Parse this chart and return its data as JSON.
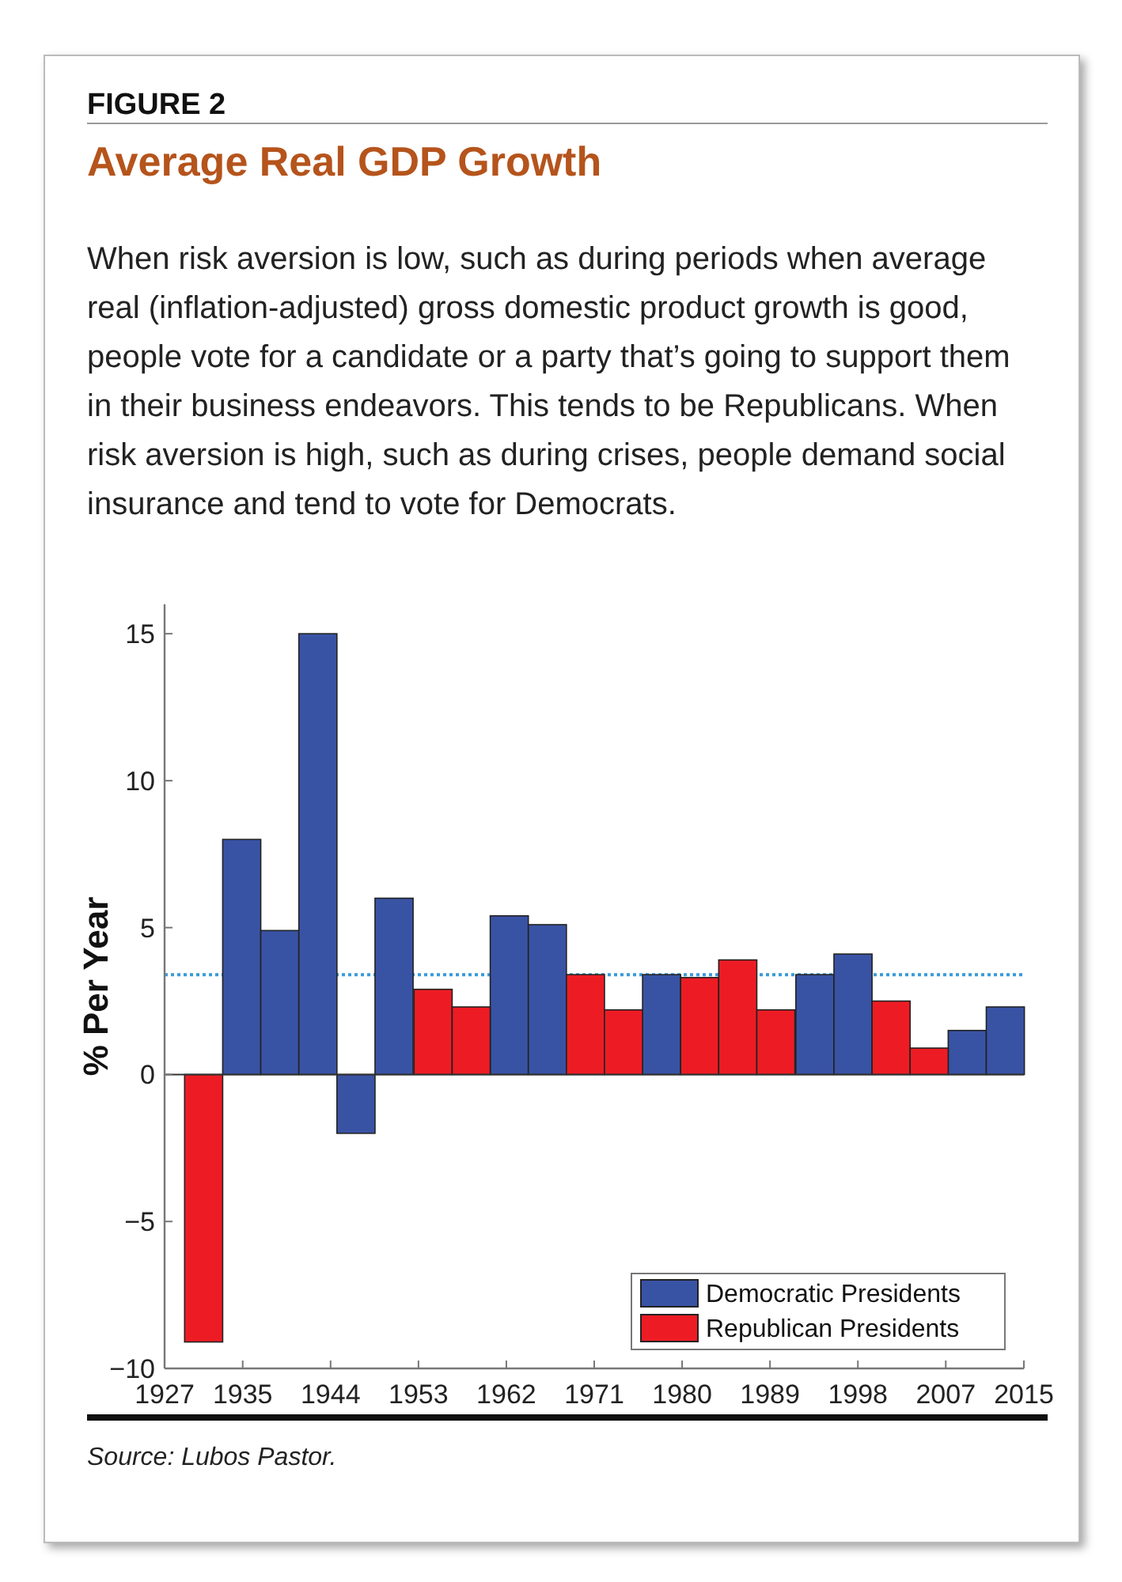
{
  "chart_data": {
    "type": "bar",
    "title": "Average Real GDP Growth",
    "subtitle": "When risk aversion is low, such as during periods when average real (inflation-adjusted) gross domestic product growth is good, people vote for a candidate or a party that’s going to support them in their business endeavors. This tends to be Republicans. When risk aversion is high, such as during crises, people demand social insurance and tend to vote for Democrats.",
    "annotations": [
      "FIGURE 2",
      "Source: Lubos Pastor."
    ],
    "ylabel": "% Per Year",
    "x": [
      1931.0,
      1934.9,
      1938.8,
      1942.7,
      1946.6,
      1950.5,
      1954.5,
      1958.4,
      1962.3,
      1966.2,
      1970.1,
      1974.0,
      1977.9,
      1981.8,
      1985.7,
      1989.6,
      1993.6,
      1997.5,
      2001.4,
      2005.3,
      2009.2,
      2013.1
    ],
    "series": [
      {
        "name": "Democratic Presidents",
        "color": "#3953a4",
        "values": [
          null,
          8.0,
          4.9,
          15.0,
          -2.0,
          6.0,
          null,
          null,
          5.4,
          5.1,
          null,
          null,
          3.4,
          null,
          null,
          null,
          3.4,
          4.1,
          null,
          null,
          1.5,
          2.3
        ]
      },
      {
        "name": "Republican Presidents",
        "color": "#ed1c24",
        "values": [
          -9.1,
          null,
          null,
          null,
          null,
          null,
          2.9,
          2.3,
          null,
          null,
          3.4,
          2.2,
          null,
          3.3,
          3.9,
          2.2,
          null,
          null,
          2.5,
          0.9,
          null,
          null
        ]
      }
    ],
    "xlim": [
      1927,
      2015
    ],
    "xticks": [
      1927,
      1935,
      1944,
      1953,
      1962,
      1971,
      1980,
      1989,
      1998,
      2007,
      2015
    ],
    "ylim": [
      -10,
      16
    ],
    "yticks": [
      -10,
      -5,
      0,
      5,
      10,
      15
    ],
    "ref_lines": [
      {
        "axis": "y",
        "value": 3.4,
        "color": "#3a9ad9",
        "line_style": "dotted"
      }
    ],
    "legend": "bottom right"
  }
}
